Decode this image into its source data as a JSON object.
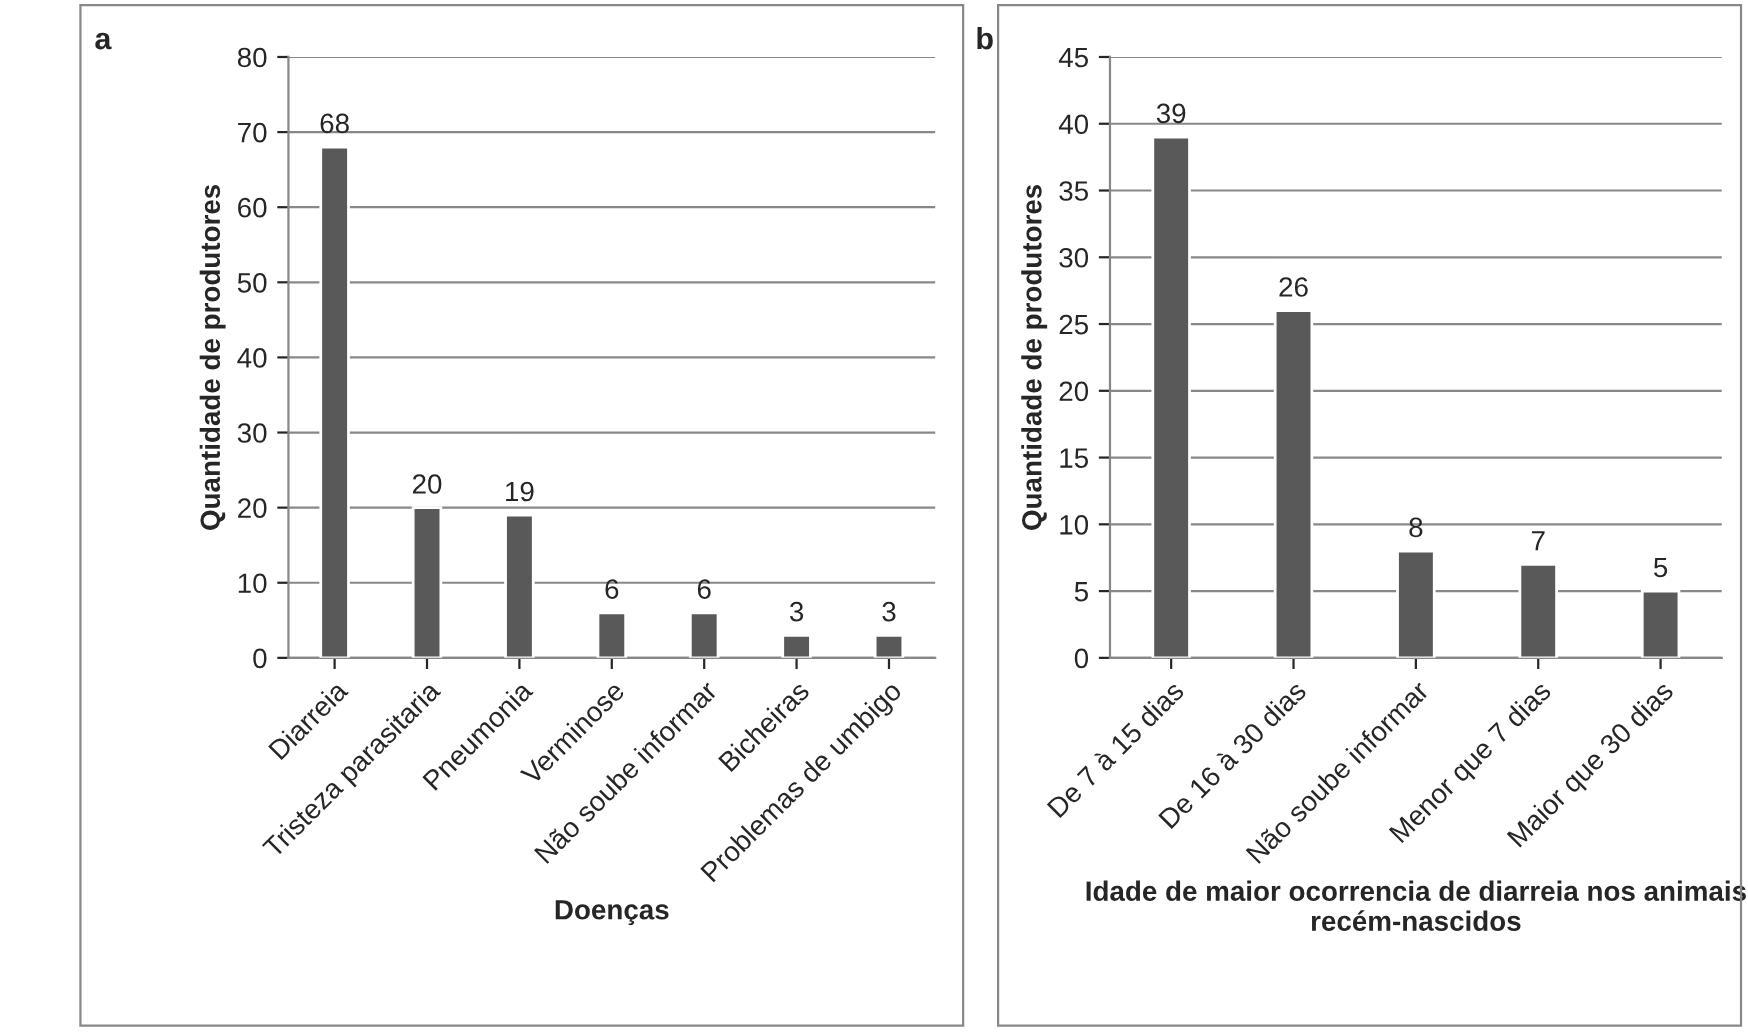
{
  "chart_data": [
    {
      "type": "bar",
      "annotations": [
        "a"
      ],
      "xlabel": "Doenças",
      "ylabel": "Quantidade de produtores",
      "categories": [
        "Diarreia",
        "Tristeza parasitaria",
        "Pneumonia",
        "Verminose",
        "Não soube informar",
        "Bicheiras",
        "Problemas de umbigo"
      ],
      "values": [
        68,
        20,
        19,
        6,
        6,
        3,
        3
      ],
      "color": "#595959",
      "ylim": [
        0,
        80
      ],
      "yticks": [
        0,
        10,
        20,
        30,
        40,
        50,
        60,
        70,
        80
      ],
      "grid": "y",
      "data_labels": true
    },
    {
      "type": "bar",
      "annotations": [
        "b"
      ],
      "xlabel": "Idade de maior ocorrencia de diarreia nos animais recém-nascidos",
      "ylabel": "Quantidade de produtores",
      "categories": [
        "De 7 à 15 dias",
        "De 16 à 30 dias",
        "Não soube informar",
        "Menor que 7 dias",
        "Maior que 30 dias"
      ],
      "values": [
        39,
        26,
        8,
        7,
        5
      ],
      "color": "#595959",
      "ylim": [
        0,
        45
      ],
      "yticks": [
        0,
        5,
        10,
        15,
        20,
        25,
        30,
        35,
        40,
        45
      ],
      "grid": "y",
      "data_labels": true
    }
  ]
}
